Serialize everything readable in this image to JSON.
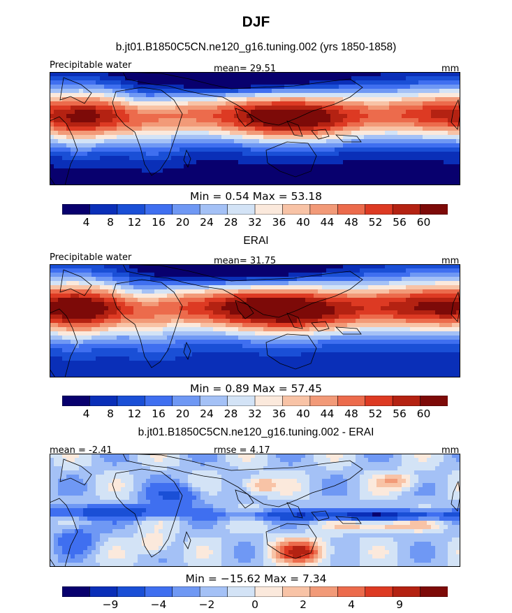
{
  "title": "DJF",
  "palette": [
    "#08006e",
    "#0a2fb8",
    "#1a4fd6",
    "#3f6ff0",
    "#6f98f4",
    "#a4c1f6",
    "#d3e3f6",
    "#fbe9dc",
    "#f8c3a6",
    "#f29a78",
    "#ec6b4c",
    "#dd3a23",
    "#b42212",
    "#7d0a08"
  ],
  "panels": [
    {
      "title": "b.jt01.B1850C5CN.ne120_g16.tuning.002 (yrs 1850-1858)",
      "left_label": "Precipitable water",
      "center_label": "mean=  29.51",
      "right_label": "mm",
      "stats": "Min =    0.54  Max =   53.18",
      "colorbar_ticks": [
        "4",
        "8",
        "12",
        "16",
        "20",
        "24",
        "28",
        "32",
        "36",
        "40",
        "44",
        "48",
        "52",
        "56",
        "60"
      ]
    },
    {
      "title": "ERAI",
      "left_label": "Precipitable water",
      "center_label": "mean=  31.75",
      "right_label": "mm",
      "stats": "Min =    0.89  Max =   57.45",
      "colorbar_ticks": [
        "4",
        "8",
        "12",
        "16",
        "20",
        "24",
        "28",
        "32",
        "36",
        "40",
        "44",
        "48",
        "52",
        "56",
        "60"
      ]
    },
    {
      "title": "b.jt01.B1850C5CN.ne120_g16.tuning.002 - ERAI",
      "left_label": "mean =  -2.41",
      "center_label": "rmse =    4.17",
      "right_label": "mm",
      "stats": "Min = −15.62  Max =    7.34",
      "colorbar_ticks": [
        "−9",
        "−4",
        "−2",
        "0",
        "2",
        "4",
        "9"
      ]
    }
  ],
  "chart_data": [
    {
      "type": "heatmap",
      "title": "b.jt01.B1850C5CN.ne120_g16.tuning.002 (yrs 1850-1858)",
      "mean": 29.51,
      "min": 0.54,
      "max": 53.18,
      "levels": [
        4,
        8,
        12,
        16,
        20,
        24,
        28,
        32,
        36,
        40,
        44,
        48,
        52,
        56,
        60
      ]
    },
    {
      "type": "heatmap",
      "title": "ERAI",
      "mean": 31.75,
      "min": 0.89,
      "max": 57.45,
      "levels": [
        4,
        8,
        12,
        16,
        20,
        24,
        28,
        32,
        36,
        40,
        44,
        48,
        52,
        56,
        60
      ]
    },
    {
      "type": "heatmap",
      "title": "b.jt01.B1850C5CN.ne120_g16.tuning.002 - ERAI",
      "mean": -2.41,
      "rmse": 4.17,
      "min": -15.62,
      "max": 7.34,
      "levels": [
        -9,
        -4,
        -2,
        0,
        2,
        4,
        9
      ]
    }
  ]
}
